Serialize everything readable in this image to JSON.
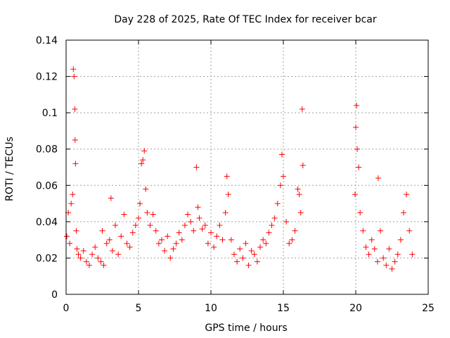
{
  "chart_data": {
    "type": "scatter",
    "title": "Day 228 of 2025, Rate Of TEC Index for receiver bcar",
    "xlabel": "GPS time / hours",
    "ylabel": "ROTI / TECUs",
    "xlim": [
      0,
      25
    ],
    "ylim": [
      0,
      0.14
    ],
    "x_ticks": [
      "0",
      "5",
      "10",
      "15",
      "20",
      "25"
    ],
    "y_ticks": [
      "0",
      "0.02",
      "0.04",
      "0.06",
      "0.08",
      "0.1",
      "0.12",
      "0.14"
    ],
    "x_tick_values": [
      0,
      5,
      10,
      15,
      20,
      25
    ],
    "y_tick_values": [
      0,
      0.02,
      0.04,
      0.06,
      0.08,
      0.1,
      0.12,
      0.14
    ],
    "grid": true,
    "marker": "+",
    "marker_color": "#ff0000",
    "series": [
      {
        "x": [
          0.05,
          0.15,
          0.25,
          0.35,
          0.45,
          0.5,
          0.55,
          0.6,
          0.62,
          0.65,
          0.7,
          0.75,
          0.85,
          1.0,
          1.2,
          1.4,
          1.6,
          1.8,
          2.0,
          2.2,
          2.4,
          2.5,
          2.6,
          2.8,
          3.0,
          3.1,
          3.2,
          3.4,
          3.6,
          3.8,
          4.0,
          4.2,
          4.4,
          4.6,
          4.8,
          5.0,
          5.1,
          5.2,
          5.3,
          5.4,
          5.5,
          5.6,
          5.8,
          6.0,
          6.2,
          6.4,
          6.6,
          6.8,
          7.0,
          7.2,
          7.4,
          7.6,
          7.8,
          8.0,
          8.2,
          8.4,
          8.6,
          8.8,
          9.0,
          9.1,
          9.2,
          9.4,
          9.6,
          9.8,
          10.0,
          10.2,
          10.4,
          10.6,
          10.8,
          11.0,
          11.1,
          11.2,
          11.4,
          11.6,
          11.8,
          12.0,
          12.2,
          12.4,
          12.6,
          12.8,
          13.0,
          13.2,
          13.4,
          13.6,
          13.8,
          14.0,
          14.2,
          14.4,
          14.6,
          14.8,
          14.9,
          15.0,
          15.2,
          15.4,
          15.6,
          15.8,
          16.0,
          16.1,
          16.2,
          16.3,
          16.35,
          19.95,
          20.0,
          20.05,
          20.1,
          20.2,
          20.3,
          20.5,
          20.7,
          20.9,
          21.1,
          21.3,
          21.5,
          21.55,
          21.7,
          21.9,
          22.1,
          22.3,
          22.5,
          22.7,
          22.9,
          23.1,
          23.3,
          23.5,
          23.7,
          23.9
        ],
        "y": [
          0.032,
          0.045,
          0.028,
          0.05,
          0.055,
          0.124,
          0.12,
          0.102,
          0.085,
          0.072,
          0.035,
          0.025,
          0.022,
          0.02,
          0.024,
          0.018,
          0.016,
          0.022,
          0.026,
          0.02,
          0.018,
          0.035,
          0.016,
          0.028,
          0.03,
          0.053,
          0.024,
          0.038,
          0.022,
          0.032,
          0.044,
          0.028,
          0.026,
          0.034,
          0.038,
          0.042,
          0.05,
          0.072,
          0.074,
          0.079,
          0.058,
          0.045,
          0.038,
          0.044,
          0.035,
          0.028,
          0.03,
          0.024,
          0.032,
          0.02,
          0.025,
          0.028,
          0.034,
          0.03,
          0.038,
          0.044,
          0.04,
          0.035,
          0.07,
          0.048,
          0.042,
          0.036,
          0.038,
          0.028,
          0.034,
          0.026,
          0.032,
          0.038,
          0.03,
          0.045,
          0.065,
          0.055,
          0.03,
          0.022,
          0.018,
          0.025,
          0.02,
          0.028,
          0.016,
          0.024,
          0.022,
          0.018,
          0.026,
          0.03,
          0.028,
          0.034,
          0.038,
          0.042,
          0.05,
          0.06,
          0.077,
          0.065,
          0.04,
          0.028,
          0.03,
          0.035,
          0.058,
          0.055,
          0.045,
          0.102,
          0.071,
          0.055,
          0.092,
          0.104,
          0.08,
          0.07,
          0.045,
          0.035,
          0.026,
          0.022,
          0.03,
          0.025,
          0.018,
          0.064,
          0.035,
          0.02,
          0.016,
          0.025,
          0.014,
          0.018,
          0.022,
          0.03,
          0.045,
          0.055,
          0.035,
          0.022
        ]
      }
    ]
  }
}
